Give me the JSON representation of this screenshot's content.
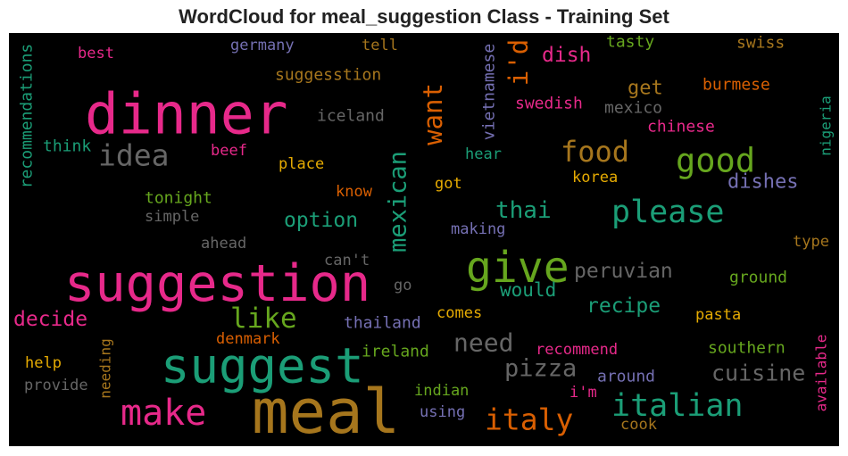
{
  "chart_data": {
    "type": "wordcloud",
    "title": "WordCloud for meal_suggestion Class - Training Set",
    "background": "#000000",
    "words": [
      {
        "text": "dinner",
        "color": "#e7298a"
      },
      {
        "text": "idea",
        "color": "#666666"
      },
      {
        "text": "suggestion",
        "color": "#e7298a"
      },
      {
        "text": "suggest",
        "color": "#1b9e77"
      },
      {
        "text": "meal",
        "color": "#a6761d"
      },
      {
        "text": "make",
        "color": "#e7298a"
      },
      {
        "text": "like",
        "color": "#66a61e"
      },
      {
        "text": "decide",
        "color": "#e7298a"
      },
      {
        "text": "give",
        "color": "#66a61e"
      },
      {
        "text": "food",
        "color": "#a6761d"
      },
      {
        "text": "good",
        "color": "#66a61e"
      },
      {
        "text": "please",
        "color": "#1b9e77"
      },
      {
        "text": "italian",
        "color": "#1b9e77"
      },
      {
        "text": "italy",
        "color": "#d95f02"
      },
      {
        "text": "cuisine",
        "color": "#666666"
      },
      {
        "text": "pizza",
        "color": "#666666"
      },
      {
        "text": "need",
        "color": "#666666"
      },
      {
        "text": "thai",
        "color": "#1b9e77"
      },
      {
        "text": "option",
        "color": "#1b9e77"
      },
      {
        "text": "recipe",
        "color": "#1b9e77"
      },
      {
        "text": "peruvian",
        "color": "#666666"
      },
      {
        "text": "would",
        "color": "#1b9e77"
      },
      {
        "text": "dish",
        "color": "#e7298a"
      },
      {
        "text": "get",
        "color": "#a6761d"
      },
      {
        "text": "mexico",
        "color": "#666666"
      },
      {
        "text": "swedish",
        "color": "#e7298a"
      },
      {
        "text": "chinese",
        "color": "#e7298a"
      },
      {
        "text": "burmese",
        "color": "#d95f02"
      },
      {
        "text": "tasty",
        "color": "#66a61e"
      },
      {
        "text": "swiss",
        "color": "#a6761d"
      },
      {
        "text": "i'd",
        "color": "#d95f02"
      },
      {
        "text": "vietnamese",
        "color": "#7570b3"
      },
      {
        "text": "want",
        "color": "#d95f02"
      },
      {
        "text": "mexican",
        "color": "#1b9e77"
      },
      {
        "text": "recommendations",
        "color": "#1b9e77"
      },
      {
        "text": "nigeria",
        "color": "#1b9e77"
      },
      {
        "text": "available",
        "color": "#e7298a"
      },
      {
        "text": "needing",
        "color": "#a6761d"
      },
      {
        "text": "best",
        "color": "#e7298a"
      },
      {
        "text": "germany",
        "color": "#7570b3"
      },
      {
        "text": "tell",
        "color": "#a6761d"
      },
      {
        "text": "suggesstion",
        "color": "#a6761d"
      },
      {
        "text": "iceland",
        "color": "#666666"
      },
      {
        "text": "think",
        "color": "#1b9e77"
      },
      {
        "text": "beef",
        "color": "#e7298a"
      },
      {
        "text": "place",
        "color": "#e6ab02"
      },
      {
        "text": "know",
        "color": "#d95f02"
      },
      {
        "text": "got",
        "color": "#e6ab02"
      },
      {
        "text": "hear",
        "color": "#1b9e77"
      },
      {
        "text": "korea",
        "color": "#e6ab02"
      },
      {
        "text": "dishes",
        "color": "#7570b3"
      },
      {
        "text": "tonight",
        "color": "#66a61e"
      },
      {
        "text": "simple",
        "color": "#666666"
      },
      {
        "text": "ahead",
        "color": "#666666"
      },
      {
        "text": "can't",
        "color": "#666666"
      },
      {
        "text": "go",
        "color": "#666666"
      },
      {
        "text": "making",
        "color": "#7570b3"
      },
      {
        "text": "type",
        "color": "#a6761d"
      },
      {
        "text": "ground",
        "color": "#66a61e"
      },
      {
        "text": "comes",
        "color": "#e6ab02"
      },
      {
        "text": "pasta",
        "color": "#e6ab02"
      },
      {
        "text": "thailand",
        "color": "#7570b3"
      },
      {
        "text": "denmark",
        "color": "#d95f02"
      },
      {
        "text": "ireland",
        "color": "#66a61e"
      },
      {
        "text": "recommend",
        "color": "#e7298a"
      },
      {
        "text": "southern",
        "color": "#66a61e"
      },
      {
        "text": "help",
        "color": "#e6ab02"
      },
      {
        "text": "around",
        "color": "#7570b3"
      },
      {
        "text": "provide",
        "color": "#666666"
      },
      {
        "text": "indian",
        "color": "#66a61e"
      },
      {
        "text": "i'm",
        "color": "#e7298a"
      },
      {
        "text": "using",
        "color": "#7570b3"
      },
      {
        "text": "cook",
        "color": "#a6761d"
      }
    ]
  }
}
